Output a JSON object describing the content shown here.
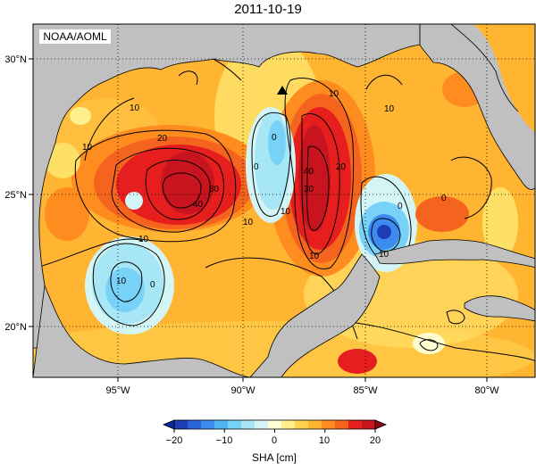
{
  "title": "2011-10-19",
  "credit": "NOAA/AOML",
  "map": {
    "lat_ticks": [
      "30°N",
      "25°N",
      "20°N"
    ],
    "lon_ticks": [
      "95°W",
      "90°W",
      "85°W",
      "80°W"
    ],
    "lon_range": [
      -98.5,
      -78.0
    ],
    "lat_range": [
      18.0,
      31.2
    ]
  },
  "contour_labels": [
    "10",
    "10",
    "10",
    "10",
    "20",
    "30",
    "40",
    "0",
    "0",
    "10",
    "40",
    "30",
    "20",
    "10",
    "0",
    "10",
    "10",
    "10",
    "0",
    "0",
    "10"
  ],
  "colorbar": {
    "label": "SHA [cm]",
    "ticks": [
      "−20",
      "−10",
      "0",
      "10",
      "20"
    ],
    "range": [
      -20,
      20
    ],
    "colors": [
      "#1e3cb4",
      "#2a64dc",
      "#3c8cf0",
      "#50b4f5",
      "#78d2f8",
      "#a6e6f5",
      "#d4f5f5",
      "#ffffd2",
      "#fff08c",
      "#ffd250",
      "#ffb432",
      "#ff8c1e",
      "#f5641e",
      "#e61e1e",
      "#c8141e"
    ]
  },
  "marker": {
    "symbol": "triangle",
    "lon": -88.4,
    "lat": 28.8
  },
  "colors": {
    "land": "#c0c0c0",
    "ocean_base": "#ffb432",
    "contour": "#000000"
  }
}
